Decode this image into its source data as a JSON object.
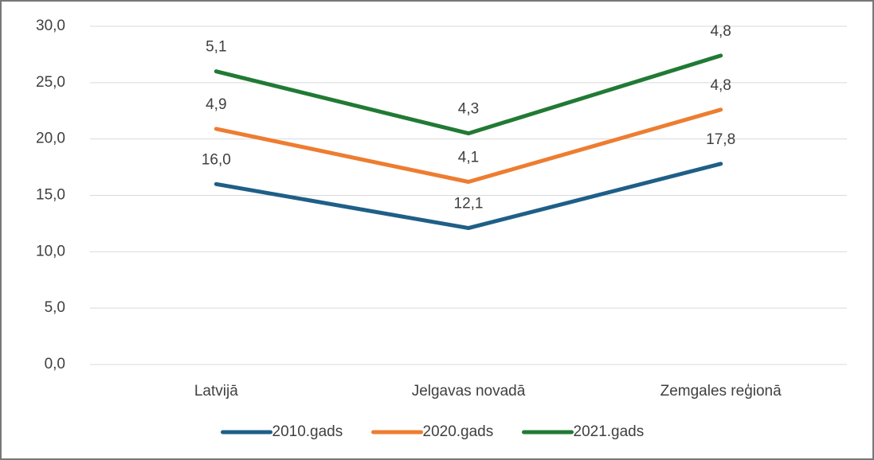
{
  "chart_data": {
    "type": "line",
    "stacked": true,
    "categories": [
      "Latvijā",
      "Jelgavas novadā",
      "Zemgales reģionā"
    ],
    "series": [
      {
        "name": "2010.gads",
        "color": "#1f5f87",
        "values": [
          16.0,
          12.1,
          17.8
        ],
        "value_labels": [
          "16,0",
          "12,1",
          "17,8"
        ]
      },
      {
        "name": "2020.gads",
        "color": "#ed7d31",
        "values": [
          4.9,
          4.1,
          4.8
        ],
        "value_labels": [
          "4,9",
          "4,1",
          "4,8"
        ]
      },
      {
        "name": "2021.gads",
        "color": "#217a34",
        "values": [
          5.1,
          4.3,
          4.8
        ],
        "value_labels": [
          "5,1",
          "4,3",
          "4,8"
        ]
      }
    ],
    "ylim": [
      0,
      30
    ],
    "yticks": [
      {
        "value": 0,
        "label": "0,0"
      },
      {
        "value": 5,
        "label": "5,0"
      },
      {
        "value": 10,
        "label": "10,0"
      },
      {
        "value": 15,
        "label": "15,0"
      },
      {
        "value": 20,
        "label": "20,0"
      },
      {
        "value": 25,
        "label": "25,0"
      },
      {
        "value": 30,
        "label": "30,0"
      }
    ],
    "grid": true,
    "legend": "bottom"
  }
}
